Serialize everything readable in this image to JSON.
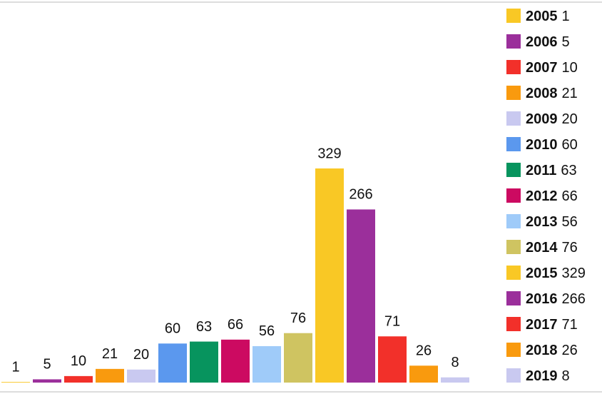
{
  "chart_data": {
    "type": "bar",
    "categories": [
      "2005",
      "2006",
      "2007",
      "2008",
      "2009",
      "2010",
      "2011",
      "2012",
      "2013",
      "2014",
      "2015",
      "2016",
      "2017",
      "2018",
      "2019"
    ],
    "values": [
      1,
      5,
      10,
      21,
      20,
      60,
      63,
      66,
      56,
      76,
      329,
      266,
      71,
      26,
      8
    ],
    "colors": [
      "#f9c825",
      "#9b2f9b",
      "#f2302a",
      "#f99a0e",
      "#c9c9f0",
      "#5b98ee",
      "#07945e",
      "#cc0a61",
      "#9fcbf9",
      "#cfc461",
      "#f9c825",
      "#9b2f9b",
      "#f2302a",
      "#f99a0e",
      "#c9c9f0"
    ]
  }
}
